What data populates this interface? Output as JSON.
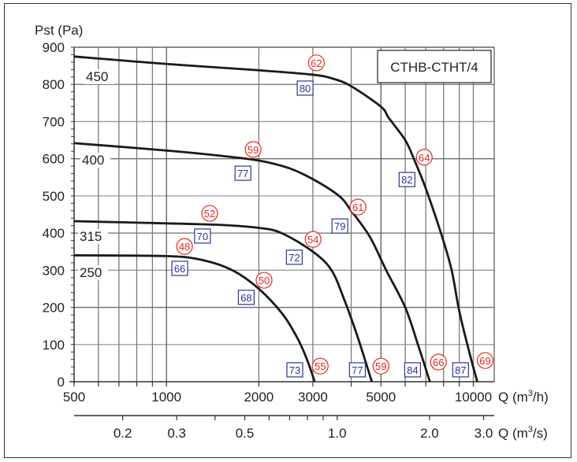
{
  "chart_data": {
    "type": "line",
    "title": "CTHB-CTHT/4",
    "ylabel": "Pst (Pa)",
    "xlabel": "Q (m3/h)",
    "xlabel_base": "Q (m",
    "xlabel_sup": "3",
    "xlabel_tail": "/h)",
    "x2label_base": "Q (m",
    "x2label_sup": "3",
    "x2label_tail": "/s)",
    "x_scale": "log",
    "xlim": [
      500,
      11700
    ],
    "ylim": [
      0,
      900
    ],
    "grid": true,
    "yticks": [
      "0",
      "100",
      "200",
      "300",
      "400",
      "500",
      "600",
      "700",
      "800",
      "900"
    ],
    "xticks": [
      {
        "value": 500,
        "label": "500"
      },
      {
        "value": 1000,
        "label": "1000"
      },
      {
        "value": 2000,
        "label": "2000"
      },
      {
        "value": 3000,
        "label": "3000"
      },
      {
        "value": 5000,
        "label": "5000"
      },
      {
        "value": 10000,
        "label": "10000"
      }
    ],
    "x_gridlines": [
      600,
      700,
      800,
      900,
      1000,
      2000,
      3000,
      4000,
      5000,
      6000,
      7000,
      8000,
      9000,
      10000
    ],
    "x2ticks": [
      {
        "value": 0.2,
        "label": "0.2"
      },
      {
        "value": 0.3,
        "label": "0.3"
      },
      {
        "value": 0.4,
        "label": ""
      },
      {
        "value": 0.5,
        "label": "0.5"
      },
      {
        "value": 0.6,
        "label": ""
      },
      {
        "value": 0.7,
        "label": ""
      },
      {
        "value": 0.8,
        "label": ""
      },
      {
        "value": 0.9,
        "label": ""
      },
      {
        "value": 1.0,
        "label": "1.0"
      },
      {
        "value": 2.0,
        "label": "2.0"
      },
      {
        "value": 3.0,
        "label": "3.0"
      }
    ],
    "series": [
      {
        "name": "450",
        "label_at": [
          570,
          830
        ],
        "points": [
          [
            500,
            875
          ],
          [
            1000,
            855
          ],
          [
            2000,
            838
          ],
          [
            3000,
            826
          ],
          [
            3500,
            815
          ],
          [
            4000,
            795
          ],
          [
            5000,
            740
          ],
          [
            5300,
            710
          ],
          [
            6000,
            650
          ],
          [
            6400,
            600
          ],
          [
            7000,
            520
          ],
          [
            7900,
            392
          ],
          [
            8500,
            300
          ],
          [
            9000,
            190
          ],
          [
            9700,
            80
          ],
          [
            10300,
            0
          ]
        ]
      },
      {
        "name": "400",
        "label_at": [
          560,
          600
        ],
        "points": [
          [
            500,
            642
          ],
          [
            1000,
            622
          ],
          [
            1500,
            608
          ],
          [
            2000,
            595
          ],
          [
            2500,
            575
          ],
          [
            3000,
            545
          ],
          [
            3650,
            500
          ],
          [
            4000,
            460
          ],
          [
            4600,
            390
          ],
          [
            5200,
            300
          ],
          [
            6000,
            200
          ],
          [
            6600,
            100
          ],
          [
            7220,
            0
          ]
        ]
      },
      {
        "name": "315",
        "label_at": [
          550,
          395
        ],
        "points": [
          [
            500,
            432
          ],
          [
            1000,
            426
          ],
          [
            1500,
            422
          ],
          [
            2000,
            414
          ],
          [
            2370,
            400
          ],
          [
            3000,
            350
          ],
          [
            3450,
            300
          ],
          [
            3800,
            220
          ],
          [
            4200,
            120
          ],
          [
            4670,
            0
          ]
        ]
      },
      {
        "name": "250",
        "label_at": [
          550,
          298
        ],
        "points": [
          [
            500,
            340
          ],
          [
            1000,
            338
          ],
          [
            1300,
            328
          ],
          [
            1640,
            300
          ],
          [
            2000,
            250
          ],
          [
            2400,
            180
          ],
          [
            2700,
            110
          ],
          [
            2900,
            50
          ],
          [
            3040,
            0
          ]
        ]
      }
    ],
    "noise_labels_red": [
      {
        "text": "62",
        "q": 3080,
        "p": 858
      },
      {
        "text": "59",
        "q": 1916,
        "p": 625
      },
      {
        "text": "64",
        "q": 6920,
        "p": 604
      },
      {
        "text": "52",
        "q": 1383,
        "p": 453
      },
      {
        "text": "61",
        "q": 4210,
        "p": 470
      },
      {
        "text": "54",
        "q": 3005,
        "p": 383
      },
      {
        "text": "48",
        "q": 1145,
        "p": 364
      },
      {
        "text": "50",
        "q": 2080,
        "p": 273
      },
      {
        "text": "55",
        "q": 3170,
        "p": 42
      },
      {
        "text": "59",
        "q": 5000,
        "p": 42
      },
      {
        "text": "66",
        "q": 7700,
        "p": 53
      },
      {
        "text": "69",
        "q": 10930,
        "p": 57
      }
    ],
    "noise_labels_blue": [
      {
        "text": "80",
        "q": 2830,
        "p": 790
      },
      {
        "text": "77",
        "q": 1775,
        "p": 561
      },
      {
        "text": "82",
        "q": 6080,
        "p": 544
      },
      {
        "text": "70",
        "q": 1310,
        "p": 392
      },
      {
        "text": "79",
        "q": 3675,
        "p": 419
      },
      {
        "text": "72",
        "q": 2610,
        "p": 335
      },
      {
        "text": "66",
        "q": 1105,
        "p": 305
      },
      {
        "text": "68",
        "q": 1820,
        "p": 227
      },
      {
        "text": "73",
        "q": 2620,
        "p": 32
      },
      {
        "text": "77",
        "q": 4190,
        "p": 32
      },
      {
        "text": "84",
        "q": 6340,
        "p": 32
      },
      {
        "text": "87",
        "q": 9090,
        "p": 32
      }
    ],
    "colors": {
      "curve": "#1a1a1a",
      "grid": "#7a7a7a",
      "red": "#e8261d",
      "blue": "#2e3592"
    }
  }
}
